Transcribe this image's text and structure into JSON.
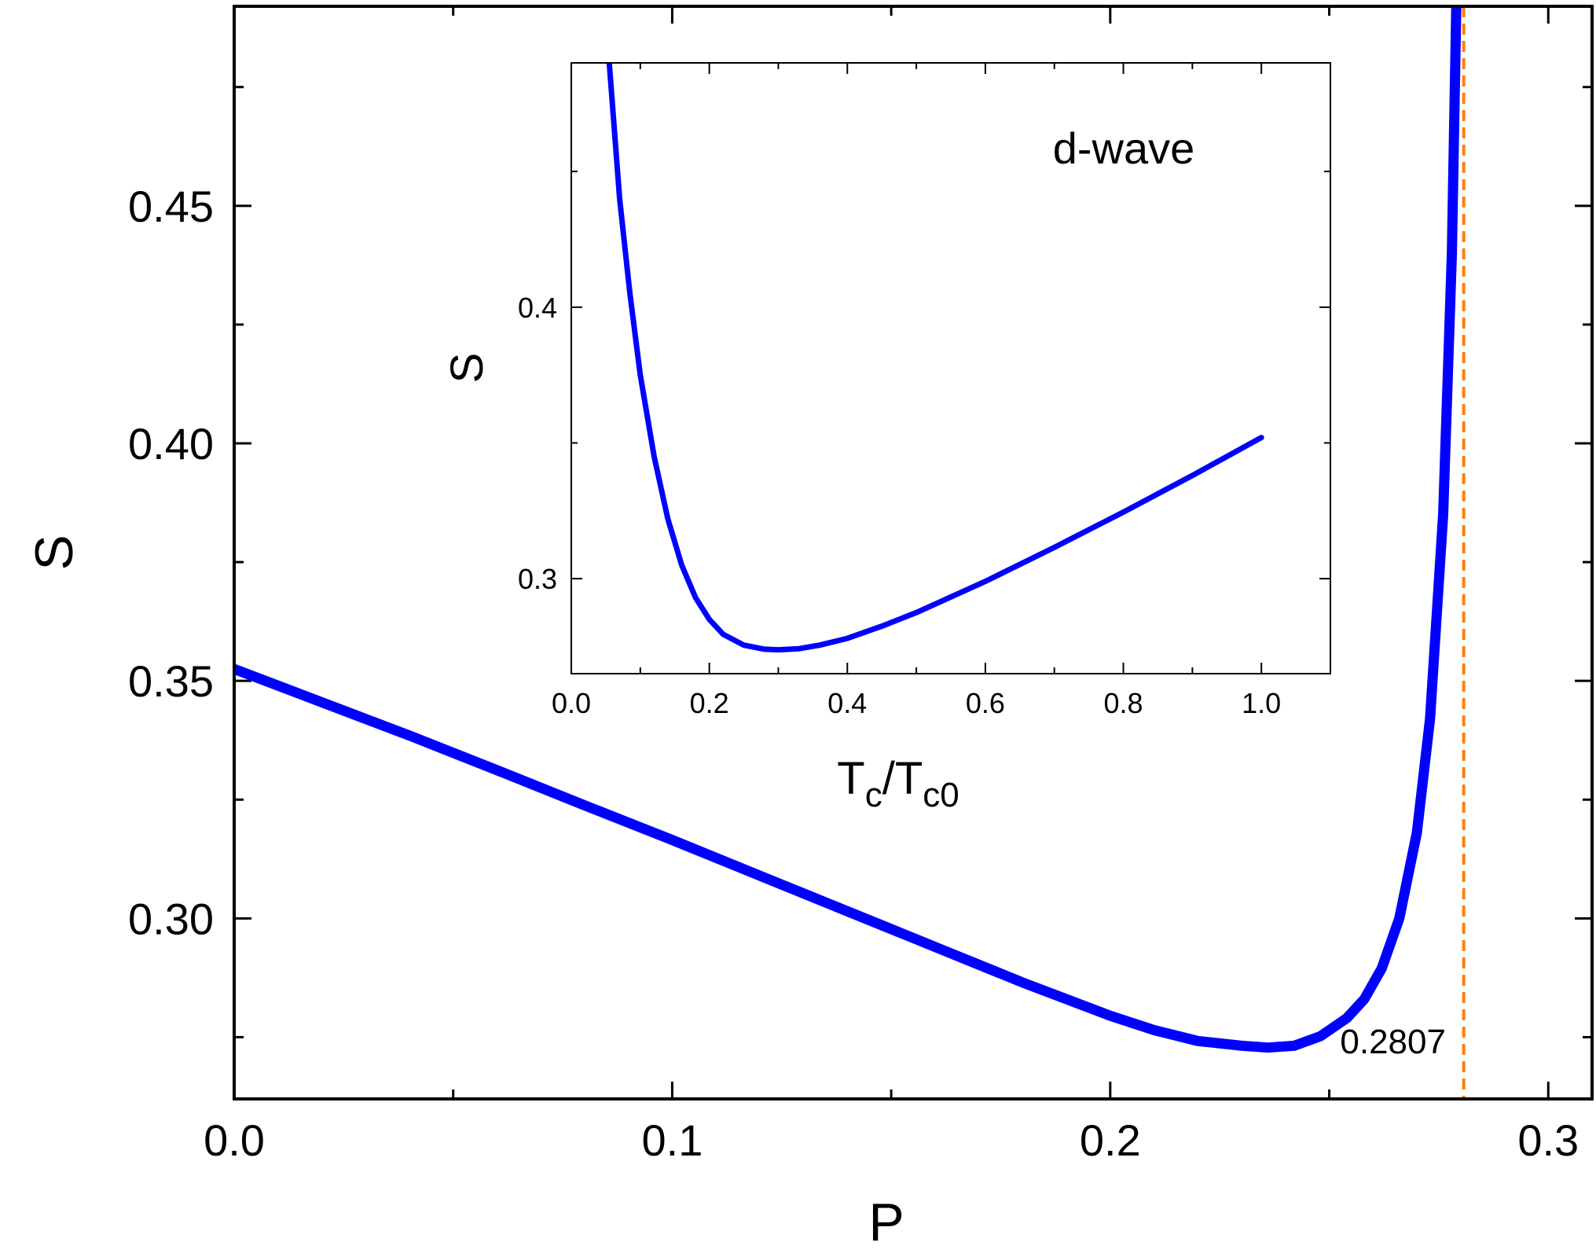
{
  "chart_data": [
    {
      "id": "main",
      "type": "line",
      "xlabel": "P",
      "ylabel": "S",
      "xlim": [
        0.0,
        0.31
      ],
      "ylim": [
        0.262,
        0.492
      ],
      "xticks": [
        0.0,
        0.1,
        0.2,
        0.3
      ],
      "xtick_labels": [
        "0.0",
        "0.1",
        "0.2",
        "0.3"
      ],
      "xminor": [
        0.05,
        0.15,
        0.25
      ],
      "yticks": [
        0.3,
        0.35,
        0.4,
        0.45
      ],
      "ytick_labels": [
        "0.30",
        "0.35",
        "0.40",
        "0.45"
      ],
      "yminor": [
        0.275,
        0.325,
        0.375,
        0.425,
        0.475
      ],
      "grid": false,
      "series_color": "#0000ff",
      "marker_color": "#ff7f0e",
      "series": [
        {
          "x": [
            0.0,
            0.02,
            0.04,
            0.06,
            0.08,
            0.1,
            0.12,
            0.14,
            0.16,
            0.18,
            0.2,
            0.21,
            0.22,
            0.23,
            0.236,
            0.242,
            0.248,
            0.254,
            0.258,
            0.262,
            0.266,
            0.27,
            0.273,
            0.276,
            0.278,
            0.279
          ],
          "y": [
            0.3525,
            0.3455,
            0.3385,
            0.3312,
            0.3238,
            0.3165,
            0.309,
            0.3015,
            0.294,
            0.2865,
            0.2795,
            0.2765,
            0.2742,
            0.2732,
            0.2728,
            0.2732,
            0.2752,
            0.279,
            0.283,
            0.2895,
            0.3,
            0.318,
            0.342,
            0.385,
            0.44,
            0.492
          ]
        }
      ],
      "vline": {
        "x": 0.2807,
        "label": "0.2807"
      }
    },
    {
      "id": "inset",
      "type": "line",
      "xlabel_main": "T",
      "xlabel_sub1": "c",
      "xlabel_mid": "/T",
      "xlabel_sub2": "c0",
      "ylabel": "S",
      "annotation": "d-wave",
      "xlim": [
        0.0,
        1.1
      ],
      "ylim": [
        0.265,
        0.49
      ],
      "xticks": [
        0.0,
        0.2,
        0.4,
        0.6,
        0.8,
        1.0
      ],
      "xtick_labels": [
        "0.0",
        "0.2",
        "0.4",
        "0.6",
        "0.8",
        "1.0"
      ],
      "xminor": [
        0.1,
        0.3,
        0.5,
        0.7,
        0.9
      ],
      "yticks": [
        0.3,
        0.4
      ],
      "ytick_labels": [
        "0.3",
        "0.4"
      ],
      "yminor": [
        0.35,
        0.45
      ],
      "grid": false,
      "series_color": "#0000ff",
      "series": [
        {
          "x": [
            0.055,
            0.07,
            0.085,
            0.1,
            0.12,
            0.14,
            0.16,
            0.18,
            0.2,
            0.22,
            0.25,
            0.28,
            0.3,
            0.33,
            0.36,
            0.4,
            0.45,
            0.5,
            0.6,
            0.7,
            0.8,
            0.9,
            1.0
          ],
          "y": [
            0.49,
            0.44,
            0.405,
            0.375,
            0.345,
            0.322,
            0.305,
            0.293,
            0.285,
            0.2795,
            0.2755,
            0.274,
            0.2738,
            0.2742,
            0.2755,
            0.278,
            0.2825,
            0.2875,
            0.299,
            0.3115,
            0.3245,
            0.338,
            0.352
          ]
        }
      ]
    }
  ]
}
